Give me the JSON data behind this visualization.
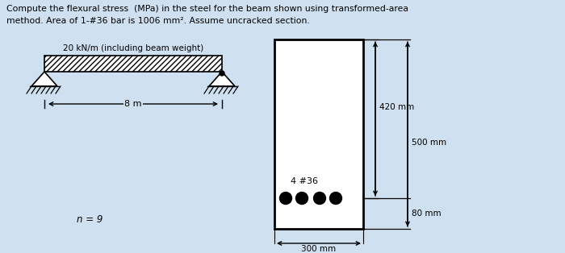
{
  "title_line1": "Compute the flexural stress  (MPa) in the steel for the beam shown using transformed-area",
  "title_line2": "method. Area of 1-#36 bar is 1006 mm². Assume uncracked section.",
  "background_color": "#cfe0f0",
  "beam_label": "20 kN/m (including beam weight)",
  "span_label": "8 m",
  "n_label": "n = 9",
  "bar_label": "4 #36",
  "dim_420": "420 mm",
  "dim_500": "500 mm",
  "dim_80": "80 mm",
  "dim_300": "300 mm"
}
